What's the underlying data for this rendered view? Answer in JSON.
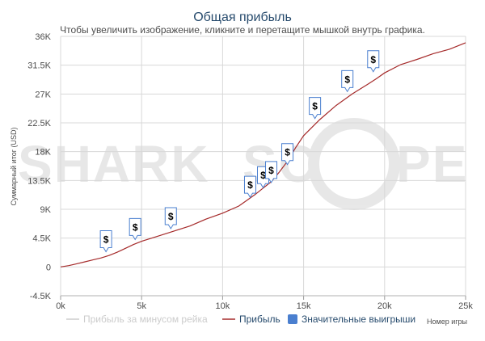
{
  "chart_data": {
    "type": "line",
    "title": "Общая прибыль",
    "subtitle": "Чтобы увеличить изображение, кликните и перетащите мышкой внутрь графика.",
    "xlabel": "Номер игры",
    "ylabel": "Суммарный итог (USD)",
    "xlim": [
      0,
      25000
    ],
    "ylim": [
      -4500,
      36000
    ],
    "x_ticks": [
      0,
      5000,
      10000,
      15000,
      20000,
      25000
    ],
    "x_tick_labels": [
      "0k",
      "5k",
      "10k",
      "15k",
      "20k",
      "25k"
    ],
    "y_ticks": [
      -4500,
      0,
      4500,
      9000,
      13500,
      18000,
      22500,
      27000,
      31500,
      36000
    ],
    "y_tick_labels": [
      "-4.5K",
      "0",
      "4.5K",
      "9K",
      "13.5K",
      "18K",
      "22.5K",
      "27K",
      "31.5K",
      "36K"
    ],
    "grid": true,
    "legend_position": "bottom",
    "series": [
      {
        "name": "Прибыль за минусом рейка",
        "color": "#cccccc",
        "hidden": true,
        "x": [],
        "y": []
      },
      {
        "name": "Прибыль",
        "color": "#a52a2a",
        "x": [
          0,
          500,
          1000,
          1500,
          2000,
          2500,
          3000,
          3500,
          4000,
          4500,
          5000,
          6000,
          7000,
          8000,
          9000,
          10000,
          11000,
          11500,
          12000,
          12500,
          13000,
          13500,
          14000,
          14500,
          15000,
          16000,
          17000,
          18000,
          19000,
          19500,
          20000,
          21000,
          22000,
          23000,
          24000,
          25000
        ],
        "y": [
          0,
          200,
          500,
          800,
          1100,
          1400,
          1800,
          2300,
          2900,
          3500,
          4000,
          4800,
          5600,
          6400,
          7500,
          8400,
          9500,
          10400,
          11300,
          12300,
          13300,
          14800,
          16500,
          18600,
          20500,
          23000,
          25200,
          27000,
          28600,
          29400,
          30300,
          31600,
          32400,
          33300,
          34000,
          35000
        ]
      },
      {
        "name": "Значительные выигрыши",
        "color": "#4a7fcf",
        "type": "markers",
        "x": [
          2800,
          4600,
          6800,
          11700,
          12500,
          13000,
          14000,
          15700,
          17700,
          19300
        ],
        "y": [
          2000,
          3900,
          5600,
          10500,
          12000,
          12800,
          15600,
          22800,
          27000,
          30100
        ],
        "marker_label": "$"
      }
    ]
  },
  "watermark": "SHARKSCOPE"
}
